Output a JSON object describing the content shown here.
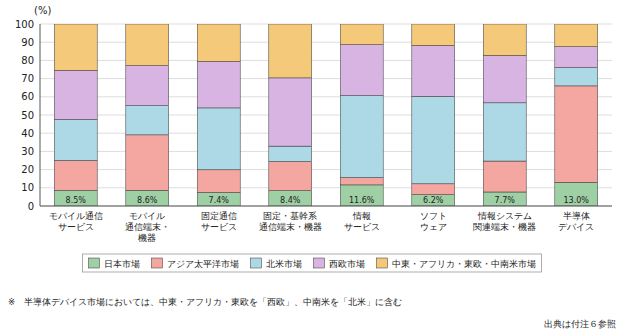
{
  "chart_data": {
    "type": "bar",
    "stacked": true,
    "ylabel": "(%)",
    "categories": [
      "モバイル通信\nサービス",
      "モバイル\n通信端末・\n機器",
      "固定通信\nサービス",
      "固定・基幹系\n通信端末・機器",
      "情報\nサービス",
      "ソフト\nウェア",
      "情報システム\n関連端末・機器",
      "半導体\nデバイス"
    ],
    "series": [
      {
        "name": "日本市場",
        "color": "#9fcfa4",
        "values": [
          8.5,
          8.6,
          7.4,
          8.4,
          11.6,
          6.2,
          7.7,
          13.0
        ],
        "data_labels": true,
        "value_labels": [
          "8.5%",
          "8.6%",
          "7.4%",
          "8.4%",
          "11.6%",
          "6.2%",
          "7.7%",
          "13.0%"
        ]
      },
      {
        "name": "アジア太平洋市場",
        "color": "#f4a6a0",
        "values": [
          16.5,
          30.5,
          12.5,
          16.0,
          4.0,
          6.0,
          17.0,
          53.0
        ]
      },
      {
        "name": "北米市場",
        "color": "#add8e6",
        "values": [
          22.5,
          16.0,
          34.0,
          8.5,
          45.0,
          48.0,
          32.0,
          10.0
        ]
      },
      {
        "name": "西欧市場",
        "color": "#d8b4e2",
        "values": [
          27.0,
          22.0,
          25.5,
          37.5,
          28.0,
          28.0,
          26.0,
          11.5
        ]
      },
      {
        "name": "中東・アフリカ・東欧・中南米市場",
        "color": "#f5c97a",
        "values": [
          25.5,
          22.9,
          20.6,
          29.6,
          11.4,
          11.8,
          17.3,
          12.5
        ]
      }
    ],
    "ylim": [
      0,
      100
    ],
    "yticks": [
      0,
      10,
      20,
      30,
      40,
      50,
      60,
      70,
      80,
      90,
      100
    ],
    "grid": true,
    "legend": "bottom",
    "annotations": [
      "※　半導体デバイス市場においては、中東・アフリカ・東欧を「西欧」、中南米を「北米」に含む",
      "出典は付注６参照"
    ]
  }
}
